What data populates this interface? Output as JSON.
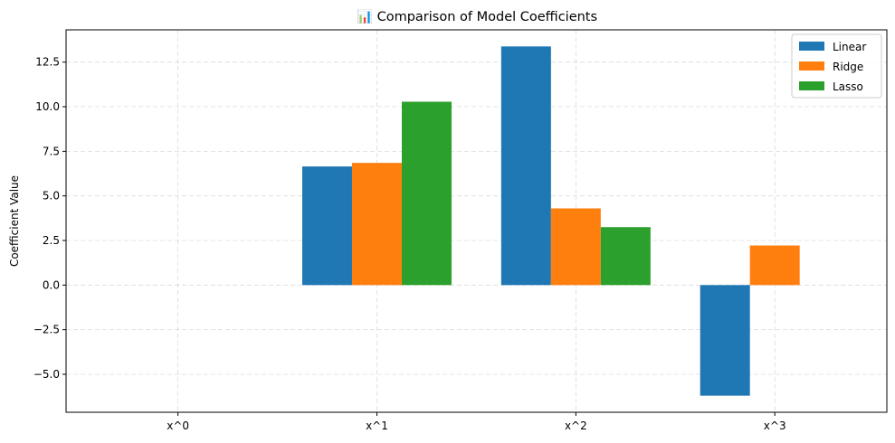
{
  "chart_data": {
    "type": "bar",
    "title": "📊 Comparison of Model Coefficients",
    "xlabel": "",
    "ylabel": "Coefficient Value",
    "categories": [
      "x^0",
      "x^1",
      "x^2",
      "x^3"
    ],
    "series": [
      {
        "name": "Linear",
        "color": "#1f77b4",
        "values": [
          0.0,
          6.65,
          13.38,
          -6.2
        ]
      },
      {
        "name": "Ridge",
        "color": "#ff7f0e",
        "values": [
          0.0,
          6.85,
          4.3,
          2.22
        ]
      },
      {
        "name": "Lasso",
        "color": "#2ca02c",
        "values": [
          0.0,
          10.28,
          3.25,
          0.0
        ]
      }
    ],
    "yticks": [
      -5.0,
      -2.5,
      0.0,
      2.5,
      5.0,
      7.5,
      10.0,
      12.5
    ],
    "ytick_labels": [
      "−5.0",
      "−2.5",
      "0.0",
      "2.5",
      "5.0",
      "7.5",
      "10.0",
      "12.5"
    ],
    "ylim": [
      -7.13,
      14.31
    ],
    "grid": true,
    "legend_position": "top-right"
  }
}
